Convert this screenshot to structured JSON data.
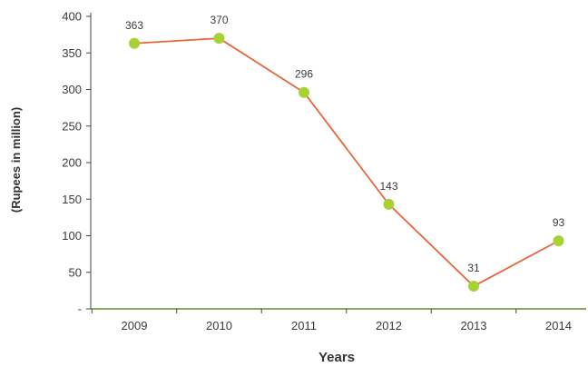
{
  "chart_data": {
    "type": "line",
    "title": "",
    "xlabel": "Years",
    "ylabel": "(Rupees in million)",
    "categories": [
      "2009",
      "2010",
      "2011",
      "2012",
      "2013",
      "2014"
    ],
    "series": [
      {
        "values": [
          363,
          370,
          296,
          143,
          31,
          93
        ],
        "data_labels": [
          "363",
          "370",
          "296",
          "143",
          "31",
          "93"
        ],
        "line_color": "#e8643c",
        "marker_color": "#a6d234"
      }
    ],
    "ylim": [
      0,
      400
    ],
    "yticks": [
      {
        "value": 50,
        "label": "50"
      },
      {
        "value": 100,
        "label": "100"
      },
      {
        "value": 150,
        "label": "150"
      },
      {
        "value": 200,
        "label": "200"
      },
      {
        "value": 250,
        "label": "250"
      },
      {
        "value": 300,
        "label": "300"
      },
      {
        "value": 350,
        "label": "350"
      },
      {
        "value": 400,
        "label": "400"
      }
    ],
    "y_zero_label": "-",
    "grid": false,
    "legend": "none",
    "axis_color": "#444444",
    "baseline_color": "#5a8f2a"
  }
}
